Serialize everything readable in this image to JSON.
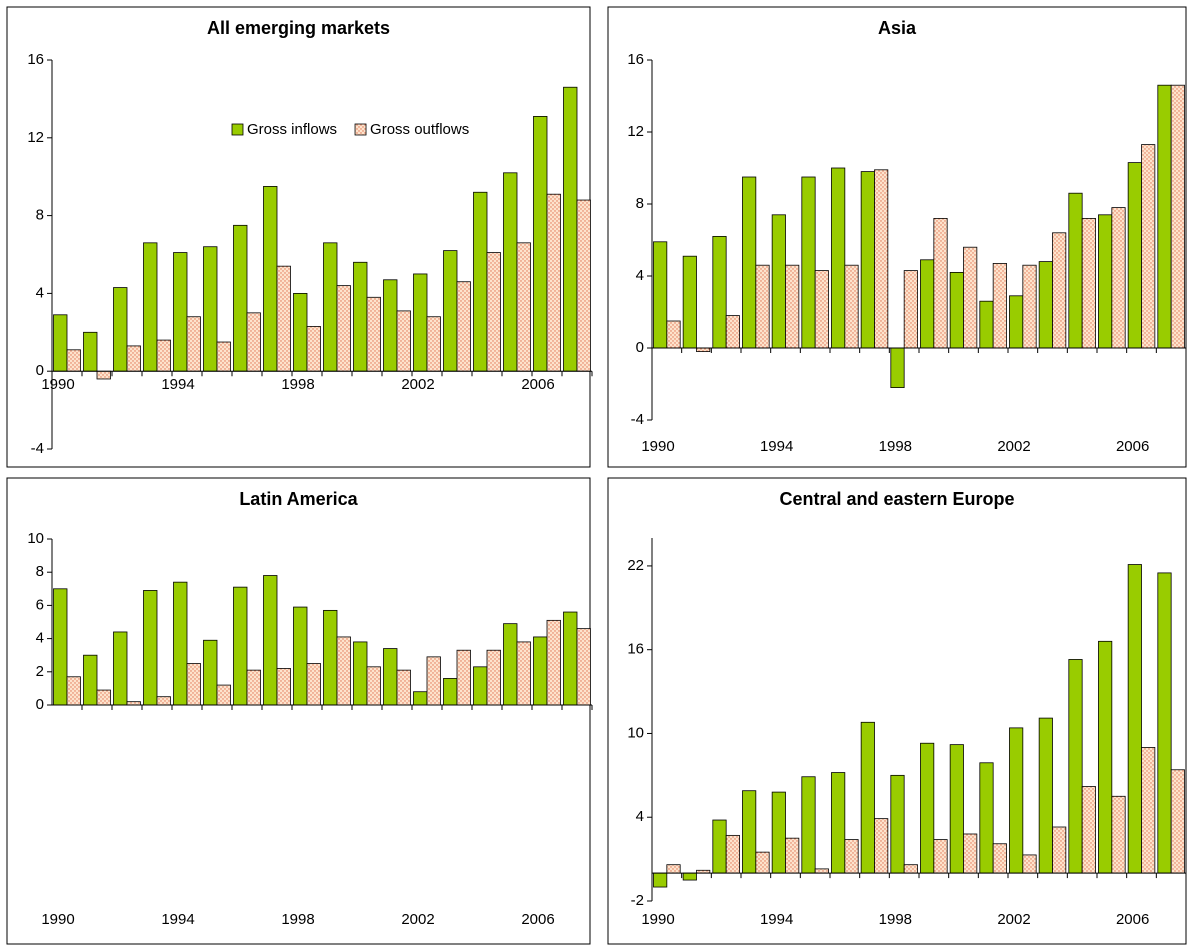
{
  "chart_data": [
    {
      "type": "bar",
      "title": "All emerging markets",
      "categories": [
        "1990",
        null,
        null,
        null,
        "1994",
        null,
        null,
        null,
        "1998",
        null,
        null,
        null,
        "2002",
        null,
        null,
        null,
        "2006",
        null
      ],
      "series": [
        {
          "name": "Gross inflows",
          "color": "#99cc00",
          "values": [
            2.9,
            2.0,
            4.3,
            6.6,
            6.1,
            6.4,
            7.5,
            9.5,
            4.0,
            6.6,
            5.6,
            4.7,
            5.0,
            6.2,
            9.2,
            10.2,
            13.1,
            14.6
          ]
        },
        {
          "name": "Gross outflows",
          "color": "#fde3cc",
          "values": [
            1.1,
            -0.4,
            1.3,
            1.6,
            2.8,
            1.5,
            3.0,
            5.4,
            2.3,
            4.4,
            3.8,
            3.1,
            2.8,
            4.6,
            6.1,
            6.6,
            9.1,
            8.8
          ]
        }
      ],
      "ylim": [
        -4,
        16
      ],
      "yticks": [
        -4,
        0,
        4,
        8,
        12,
        16
      ],
      "legend": "top"
    },
    {
      "type": "bar",
      "title": "Asia",
      "categories": [
        "1990",
        null,
        null,
        null,
        "1994",
        null,
        null,
        null,
        "1998",
        null,
        null,
        null,
        "2002",
        null,
        null,
        null,
        "2006",
        null
      ],
      "series": [
        {
          "color": "#99cc00",
          "values": [
            5.9,
            5.1,
            6.2,
            9.5,
            7.4,
            9.5,
            10.0,
            9.8,
            -2.2,
            4.9,
            4.2,
            2.6,
            2.9,
            4.8,
            8.6,
            7.4,
            10.3,
            14.6
          ]
        },
        {
          "color": "#fde3cc",
          "values": [
            1.5,
            -0.2,
            1.8,
            4.6,
            4.6,
            4.3,
            4.6,
            9.9,
            4.3,
            7.2,
            5.6,
            4.7,
            4.6,
            6.4,
            7.2,
            7.8,
            11.3,
            14.6
          ]
        }
      ],
      "ylim": [
        -4,
        16
      ],
      "yticks": [
        -4,
        0,
        4,
        8,
        12,
        16
      ]
    },
    {
      "type": "bar",
      "title": "Latin America",
      "categories": [
        "1990",
        null,
        null,
        null,
        "1994",
        null,
        null,
        null,
        "1998",
        null,
        null,
        null,
        "2002",
        null,
        null,
        null,
        "2006",
        null
      ],
      "series": [
        {
          "color": "#99cc00",
          "values": [
            7.0,
            3.0,
            4.4,
            6.9,
            7.4,
            3.9,
            7.1,
            7.8,
            5.9,
            5.7,
            3.8,
            3.4,
            0.8,
            1.6,
            2.3,
            4.9,
            4.1,
            5.6
          ]
        },
        {
          "color": "#fde3cc",
          "values": [
            1.7,
            0.9,
            0.2,
            0.5,
            2.5,
            1.2,
            2.1,
            2.2,
            2.5,
            4.1,
            2.3,
            2.1,
            2.9,
            3.3,
            3.3,
            3.8,
            5.1,
            4.6
          ]
        }
      ],
      "ylim": [
        0,
        10
      ],
      "yticks": [
        0,
        2,
        4,
        6,
        8,
        10
      ]
    },
    {
      "type": "bar",
      "title": "Central and eastern Europe",
      "categories": [
        "1990",
        null,
        null,
        null,
        "1994",
        null,
        null,
        null,
        "1998",
        null,
        null,
        null,
        "2002",
        null,
        null,
        null,
        "2006",
        null
      ],
      "series": [
        {
          "color": "#99cc00",
          "values": [
            -1.0,
            -0.5,
            3.8,
            5.9,
            5.8,
            6.9,
            7.2,
            10.8,
            7.0,
            9.3,
            9.2,
            7.9,
            10.4,
            11.1,
            15.3,
            16.6,
            22.1,
            21.5
          ]
        },
        {
          "color": "#fde3cc",
          "values": [
            0.6,
            0.2,
            2.7,
            1.5,
            2.5,
            0.3,
            2.4,
            3.9,
            0.6,
            2.4,
            2.8,
            2.1,
            1.3,
            3.3,
            6.2,
            5.5,
            9.0,
            7.4
          ]
        }
      ],
      "ylim": [
        -2,
        24
      ],
      "yticks": [
        -2,
        4,
        10,
        16,
        22
      ]
    }
  ]
}
